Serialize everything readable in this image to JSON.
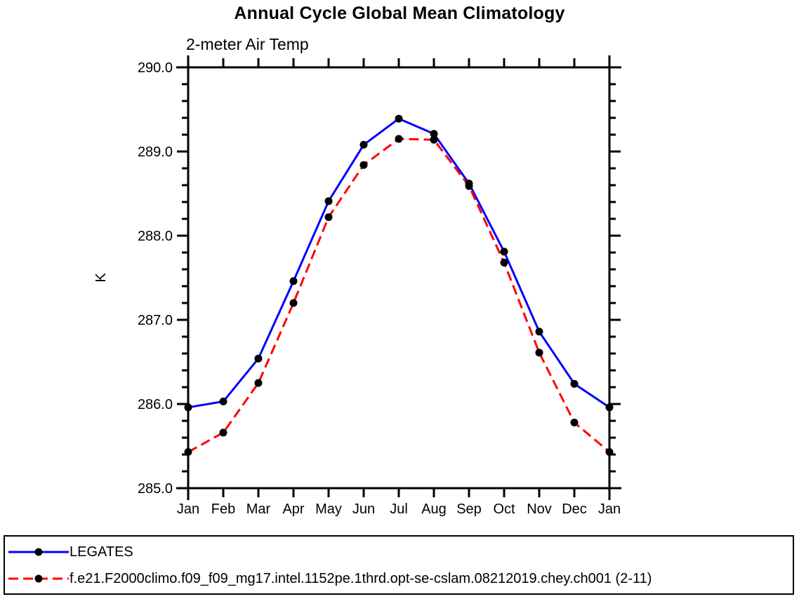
{
  "title": "Annual Cycle Global Mean Climatology",
  "subtitle": "2-meter Air Temp",
  "chart_data": {
    "type": "line",
    "categories": [
      "Jan",
      "Feb",
      "Mar",
      "Apr",
      "May",
      "Jun",
      "Jul",
      "Aug",
      "Sep",
      "Oct",
      "Nov",
      "Dec",
      "Jan"
    ],
    "series": [
      {
        "name": "LEGATES",
        "color": "#0000ff",
        "style": "solid",
        "dash": "none",
        "values": [
          285.96,
          286.03,
          286.54,
          287.46,
          288.41,
          289.08,
          289.39,
          289.21,
          288.62,
          287.81,
          286.86,
          286.24,
          285.96
        ]
      },
      {
        "name": "f.e21.F2000climo.f09_f09_mg17.intel.1152pe.1thrd.opt-se-cslam.08212019.chey.ch001 (2-11)",
        "color": "#ff0000",
        "style": "dashed",
        "dash": "14,7",
        "values": [
          285.43,
          285.66,
          286.25,
          287.2,
          288.22,
          288.84,
          289.15,
          289.14,
          288.59,
          287.68,
          286.61,
          285.78,
          285.43
        ]
      }
    ],
    "xlabel": "",
    "ylabel": "K",
    "ylim": [
      285.0,
      290.0
    ],
    "ytick_labels": [
      "285.0",
      "286.0",
      "287.0",
      "288.0",
      "289.0",
      "290.0"
    ],
    "ytick_major_interval": 1.0,
    "ytick_minor_interval": 0.2,
    "marker": {
      "shape": "filled-circle",
      "color": "#000000"
    },
    "grid": false,
    "legend_position": "bottom"
  }
}
